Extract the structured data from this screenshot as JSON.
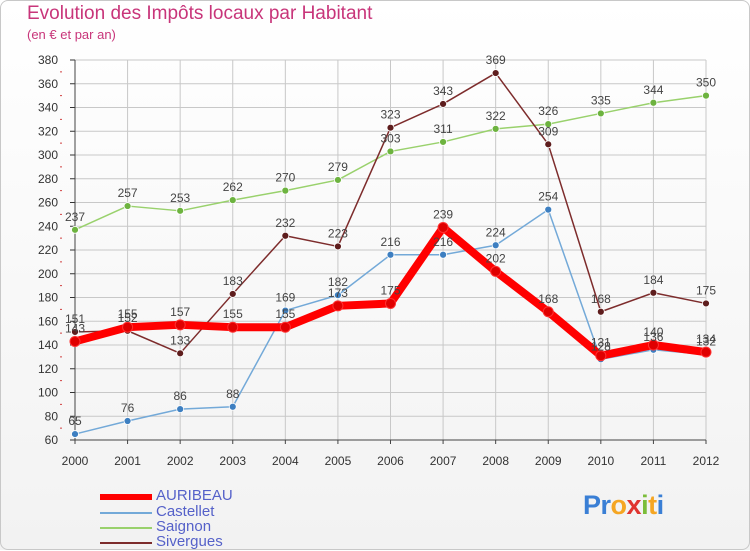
{
  "header": {
    "title": "Evolution des Impôts locaux par Habitant",
    "subtitle": "(en € et par an)"
  },
  "logo": {
    "letters": [
      "P",
      "r",
      "o",
      "x",
      "i",
      "t",
      "i"
    ]
  },
  "colors": {
    "title": "#c8357a",
    "legend_text": "#5561c9",
    "grid": "#c8c8c8",
    "axis_text": "#333333",
    "logo": [
      "#3a7fd5",
      "#3a7fd5",
      "#f5a623",
      "#e0342f",
      "#7bbd3a",
      "#f5a623",
      "#3a7fd5"
    ]
  },
  "chart_data": {
    "type": "line",
    "title": "Evolution des Impôts locaux par Habitant",
    "subtitle": "(en € et par an)",
    "xlabel": "",
    "ylabel": "",
    "ylim": [
      60,
      380
    ],
    "ytick_step": 20,
    "grid": true,
    "legend_position": "bottom-left",
    "categories": [
      "2000",
      "2001",
      "2002",
      "2003",
      "2004",
      "2005",
      "2006",
      "2007",
      "2008",
      "2009",
      "2010",
      "2011",
      "2012"
    ],
    "series": [
      {
        "name": "AURIBEAU",
        "color": "#ff0000",
        "marker": "#e00000",
        "values": [
          143,
          155,
          157,
          155,
          155,
          173,
          175,
          239,
          202,
          168,
          131,
          140,
          134
        ]
      },
      {
        "name": "Castellet",
        "color": "#73a9d8",
        "marker": "#3d7fc1",
        "values": [
          65,
          76,
          86,
          88,
          169,
          182,
          216,
          216,
          224,
          254,
          128,
          136,
          132
        ]
      },
      {
        "name": "Saignon",
        "color": "#99d16c",
        "marker": "#6db33f",
        "values": [
          237,
          257,
          253,
          262,
          270,
          279,
          303,
          311,
          322,
          326,
          335,
          344,
          350
        ]
      },
      {
        "name": "Sivergues",
        "color": "#7d2c2c",
        "marker": "#5e1d1d",
        "values": [
          151,
          152,
          133,
          183,
          232,
          223,
          323,
          343,
          369,
          309,
          168,
          184,
          175
        ]
      }
    ]
  }
}
